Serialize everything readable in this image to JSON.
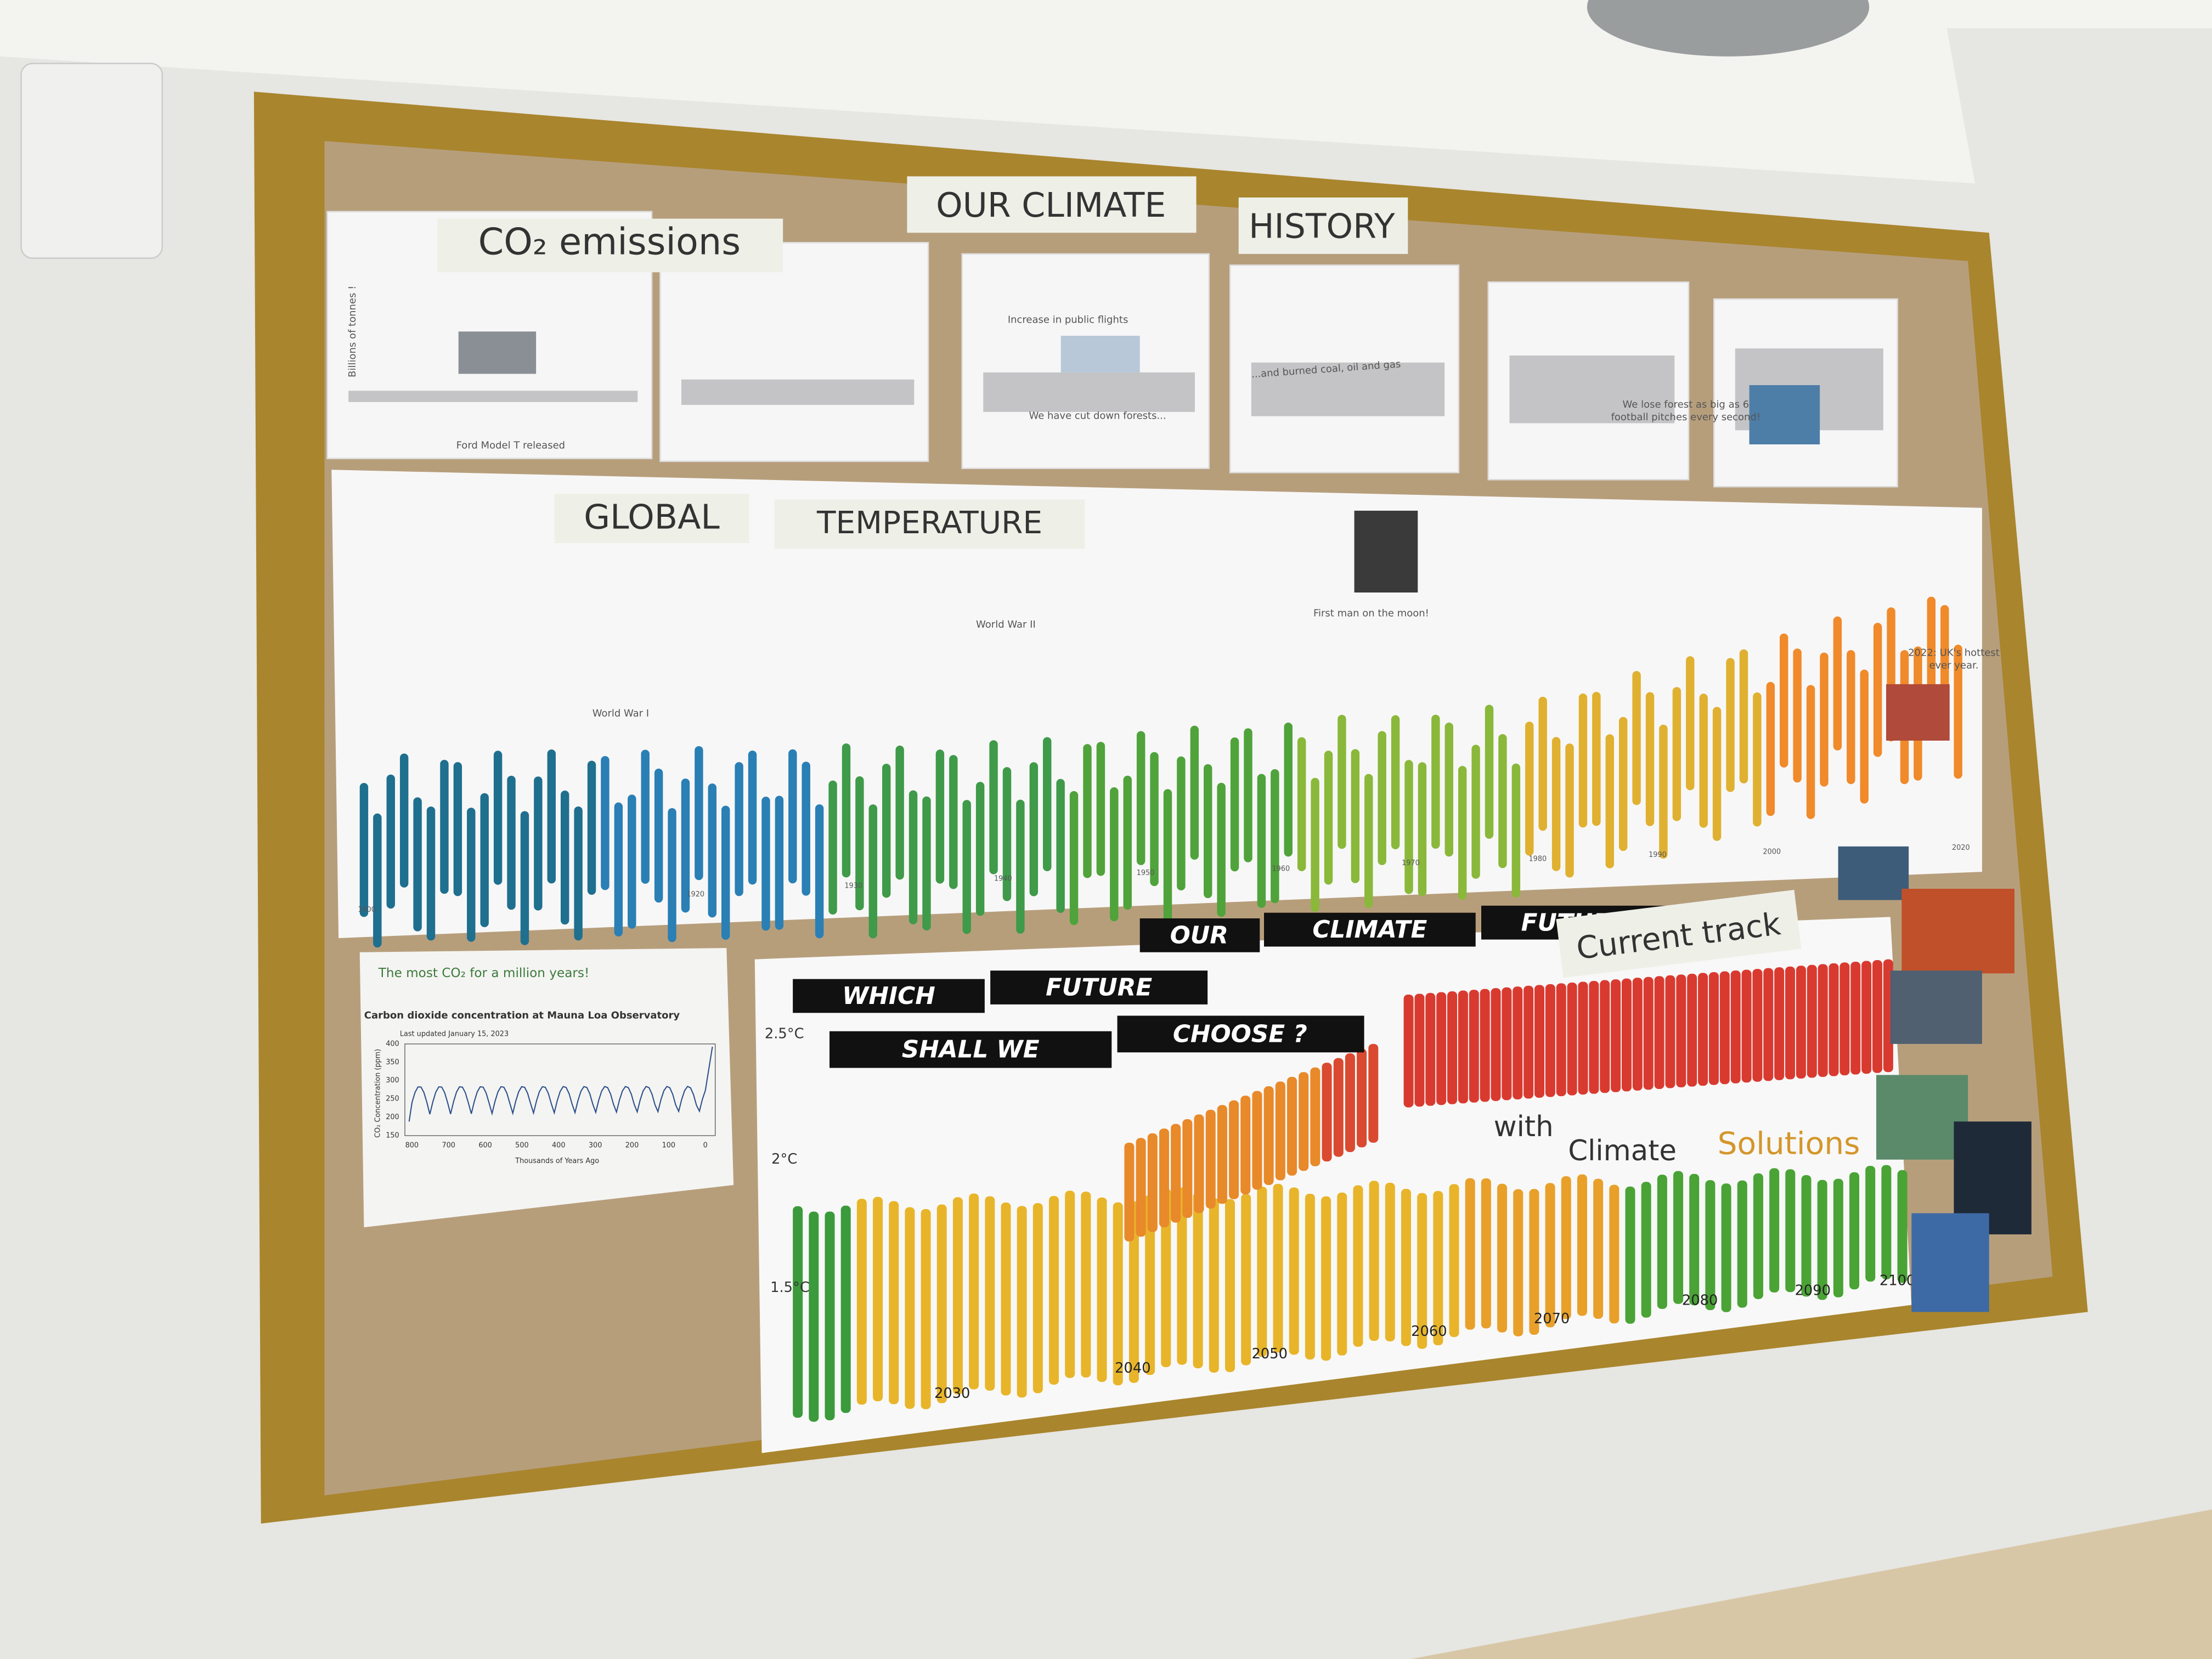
{
  "header": {
    "title_left": "OUR CLIMATE",
    "title_right": "HISTORY"
  },
  "co2_section": {
    "title": "CO₂ emissions",
    "axis_label": "Billions of tonnes !",
    "notes": [
      "Ford Model T released",
      "Increase in public flights",
      "We have cut down forests...",
      "...and burned coal, oil and gas",
      "We lose forest as big as 6",
      "football pitches every second!"
    ]
  },
  "temperature_section": {
    "title_left": "GLOBAL",
    "title_right": "TEMPERATURE",
    "notes": [
      "World War I",
      "World War II",
      "First man on the moon!",
      "2022: UK's hottest",
      "ever year."
    ],
    "years": [
      "1900",
      "1920",
      "1930",
      "1940",
      "1950",
      "1960",
      "1970",
      "1980",
      "1990",
      "2000",
      "2020"
    ]
  },
  "mauna_loa": {
    "caption": "The most CO₂ for a million years!",
    "title": "Carbon dioxide concentration at Mauna Loa Observatory",
    "subtitle": "Last updated January 15, 2023",
    "y_label": "CO₂ Concentration (ppm)",
    "x_label": "Thousands of Years Ago",
    "yticks": [
      400,
      350,
      300,
      250,
      200,
      150
    ],
    "xticks": [
      800,
      700,
      600,
      500,
      400,
      300,
      200,
      100,
      0
    ]
  },
  "future_section": {
    "title": [
      "OUR",
      "CLIMATE",
      "FUTURE"
    ],
    "question": [
      "WHICH",
      "FUTURE",
      "SHALL WE",
      "CHOOSE ?"
    ],
    "current_track": "Current track",
    "solutions": [
      "with",
      "Climate",
      "Solutions"
    ],
    "levels": [
      "2.5°C",
      "2°C",
      "1.5°C"
    ],
    "years": [
      "2030",
      "2040",
      "2050",
      "2060",
      "2070",
      "2080",
      "2090",
      "2100"
    ]
  }
}
